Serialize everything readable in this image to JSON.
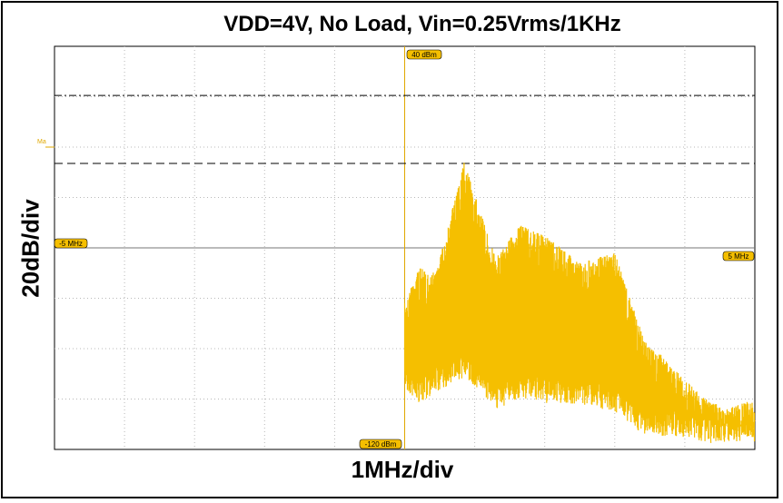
{
  "title": "VDD=4V, No Load, Vin=0.25Vrms/1KHz",
  "chart_data": {
    "type": "line",
    "title": "VDD=4V, No Load, Vin=0.25Vrms/1KHz",
    "xlabel": "1MHz/div",
    "ylabel": "20dB/div",
    "xlim": [
      -5,
      5
    ],
    "ylim": [
      -120,
      40
    ],
    "x_unit": "MHz",
    "y_unit": "dBm",
    "grid": true,
    "trace_color": "#f5bf00",
    "markers": {
      "top": "40 dBm",
      "bottom": "-120 dBm",
      "left": "-5 MHz",
      "right": "5 MHz",
      "ref": "Ma"
    },
    "cursor_lines_dbm": [
      20.5,
      -6.5
    ],
    "series": [
      {
        "x": [
          0.0,
          0.2,
          0.45,
          0.85,
          1.3,
          1.65,
          2.05,
          2.5,
          3.0,
          3.4,
          3.85,
          4.3,
          4.6,
          5.0
        ],
        "peak": [
          -62,
          -48,
          -50,
          -6,
          -44,
          -31,
          -36,
          -46,
          -42,
          -75,
          -88,
          -100,
          -104,
          -100
        ],
        "floor": [
          -94,
          -100,
          -95,
          -90,
          -102,
          -98,
          -100,
          -100,
          -103,
          -112,
          -113,
          -115,
          -115,
          -115
        ]
      }
    ]
  }
}
